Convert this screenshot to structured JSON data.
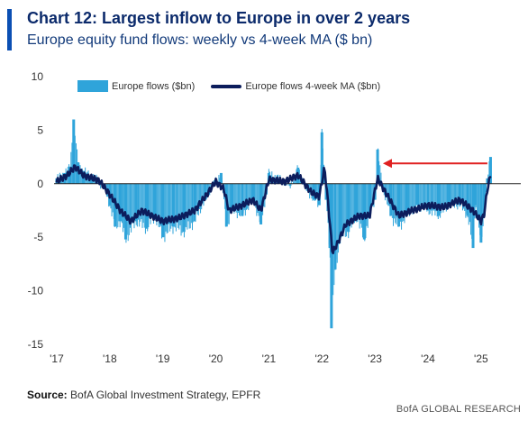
{
  "header": {
    "title": "Chart 12: Largest inflow to Europe in over 2 years",
    "subtitle": "Europe equity fund flows: weekly vs 4-week MA ($ bn)"
  },
  "footer": {
    "source_label": "Source:",
    "source_text": "BofA Global Investment Strategy, EPFR",
    "brand": "BofA GLOBAL RESEARCH"
  },
  "colors": {
    "bar": "#2fa4da",
    "line": "#0c1d5c",
    "arrow": "#e02020",
    "title": "#0b2a6b",
    "accent_bar": "#0b4fb3"
  },
  "chart_data": {
    "type": "bar+line",
    "title": "Chart 12: Largest inflow to Europe in over 2 years",
    "subtitle": "Europe equity fund flows: weekly vs 4-week MA ($ bn)",
    "xlabel": "",
    "ylabel": "",
    "ylim": [
      -15,
      10
    ],
    "yticks": [
      10,
      5,
      0,
      -5,
      -10,
      -15
    ],
    "xticks": [
      "'17",
      "'18",
      "'19",
      "'20",
      "'21",
      "'22",
      "'23",
      "'24",
      "'25"
    ],
    "xlim": [
      2016.95,
      2025.75
    ],
    "legend": {
      "position": "top-left",
      "entries": [
        "Europe flows ($bn)",
        "Europe flows 4-week MA ($bn)"
      ]
    },
    "series": [
      {
        "name": "Europe flows ($bn)",
        "kind": "bar",
        "anchors": [
          [
            2017.0,
            0.5
          ],
          [
            2017.15,
            1.0
          ],
          [
            2017.25,
            1.6
          ],
          [
            2017.32,
            6.0
          ],
          [
            2017.4,
            2.0
          ],
          [
            2017.5,
            1.2
          ],
          [
            2017.65,
            0.8
          ],
          [
            2017.8,
            0.2
          ],
          [
            2017.9,
            -0.5
          ],
          [
            2018.0,
            -2.0
          ],
          [
            2018.1,
            -4.0
          ],
          [
            2018.2,
            -3.5
          ],
          [
            2018.3,
            -5.2
          ],
          [
            2018.5,
            -3.5
          ],
          [
            2018.7,
            -4.2
          ],
          [
            2018.85,
            -3.0
          ],
          [
            2019.0,
            -5.0
          ],
          [
            2019.2,
            -4.0
          ],
          [
            2019.4,
            -4.5
          ],
          [
            2019.6,
            -3.5
          ],
          [
            2019.8,
            -1.5
          ],
          [
            2020.0,
            0.3
          ],
          [
            2020.1,
            1.0
          ],
          [
            2020.2,
            -4.0
          ],
          [
            2020.3,
            -2.5
          ],
          [
            2020.5,
            -3.0
          ],
          [
            2020.7,
            -1.5
          ],
          [
            2020.85,
            -3.8
          ],
          [
            2020.95,
            -1.0
          ],
          [
            2021.0,
            1.0
          ],
          [
            2021.2,
            0.5
          ],
          [
            2021.4,
            -0.2
          ],
          [
            2021.55,
            1.5
          ],
          [
            2021.7,
            -0.5
          ],
          [
            2021.85,
            -1.5
          ],
          [
            2021.95,
            -2.0
          ],
          [
            2022.0,
            4.8
          ],
          [
            2022.08,
            -1.5
          ],
          [
            2022.15,
            -6.0
          ],
          [
            2022.18,
            -13.5
          ],
          [
            2022.25,
            -8.0
          ],
          [
            2022.35,
            -5.0
          ],
          [
            2022.5,
            -4.5
          ],
          [
            2022.65,
            -3.0
          ],
          [
            2022.8,
            -5.2
          ],
          [
            2022.9,
            -3.0
          ],
          [
            2023.0,
            -1.5
          ],
          [
            2023.05,
            3.2
          ],
          [
            2023.15,
            -0.5
          ],
          [
            2023.3,
            -3.0
          ],
          [
            2023.45,
            -4.0
          ],
          [
            2023.6,
            -3.0
          ],
          [
            2023.8,
            -2.0
          ],
          [
            2024.0,
            -2.5
          ],
          [
            2024.2,
            -3.0
          ],
          [
            2024.4,
            -2.0
          ],
          [
            2024.6,
            -2.0
          ],
          [
            2024.75,
            -3.0
          ],
          [
            2024.85,
            -6.0
          ],
          [
            2024.9,
            -2.0
          ],
          [
            2025.0,
            -5.5
          ],
          [
            2025.06,
            -3.0
          ],
          [
            2025.12,
            0.5
          ],
          [
            2025.18,
            2.5
          ]
        ]
      },
      {
        "name": "Europe flows 4-week MA ($bn)",
        "kind": "line",
        "anchors": [
          [
            2017.0,
            0.2
          ],
          [
            2017.2,
            0.8
          ],
          [
            2017.35,
            1.6
          ],
          [
            2017.5,
            0.8
          ],
          [
            2017.8,
            0.3
          ],
          [
            2018.0,
            -1.0
          ],
          [
            2018.2,
            -2.5
          ],
          [
            2018.4,
            -3.5
          ],
          [
            2018.6,
            -2.5
          ],
          [
            2018.8,
            -3.0
          ],
          [
            2019.0,
            -3.5
          ],
          [
            2019.3,
            -3.2
          ],
          [
            2019.6,
            -2.5
          ],
          [
            2019.8,
            -1.2
          ],
          [
            2020.0,
            0.2
          ],
          [
            2020.15,
            -0.5
          ],
          [
            2020.25,
            -2.5
          ],
          [
            2020.5,
            -2.0
          ],
          [
            2020.7,
            -1.5
          ],
          [
            2020.85,
            -2.5
          ],
          [
            2021.0,
            0.4
          ],
          [
            2021.3,
            0.2
          ],
          [
            2021.55,
            0.8
          ],
          [
            2021.8,
            -0.8
          ],
          [
            2021.95,
            -1.2
          ],
          [
            2022.05,
            1.5
          ],
          [
            2022.12,
            -2.0
          ],
          [
            2022.2,
            -6.5
          ],
          [
            2022.3,
            -5.5
          ],
          [
            2022.45,
            -3.8
          ],
          [
            2022.7,
            -3.0
          ],
          [
            2022.9,
            -3.0
          ],
          [
            2023.05,
            0.5
          ],
          [
            2023.2,
            -0.8
          ],
          [
            2023.45,
            -3.0
          ],
          [
            2023.7,
            -2.5
          ],
          [
            2024.0,
            -2.0
          ],
          [
            2024.3,
            -2.2
          ],
          [
            2024.6,
            -1.5
          ],
          [
            2024.85,
            -2.5
          ],
          [
            2025.0,
            -3.5
          ],
          [
            2025.06,
            -2.8
          ],
          [
            2025.12,
            -0.5
          ],
          [
            2025.18,
            0.8
          ]
        ]
      }
    ],
    "annotations": [
      {
        "type": "arrow",
        "from": [
          2025.12,
          1.9
        ],
        "to": [
          2023.15,
          1.9
        ],
        "color": "#e02020"
      }
    ]
  }
}
